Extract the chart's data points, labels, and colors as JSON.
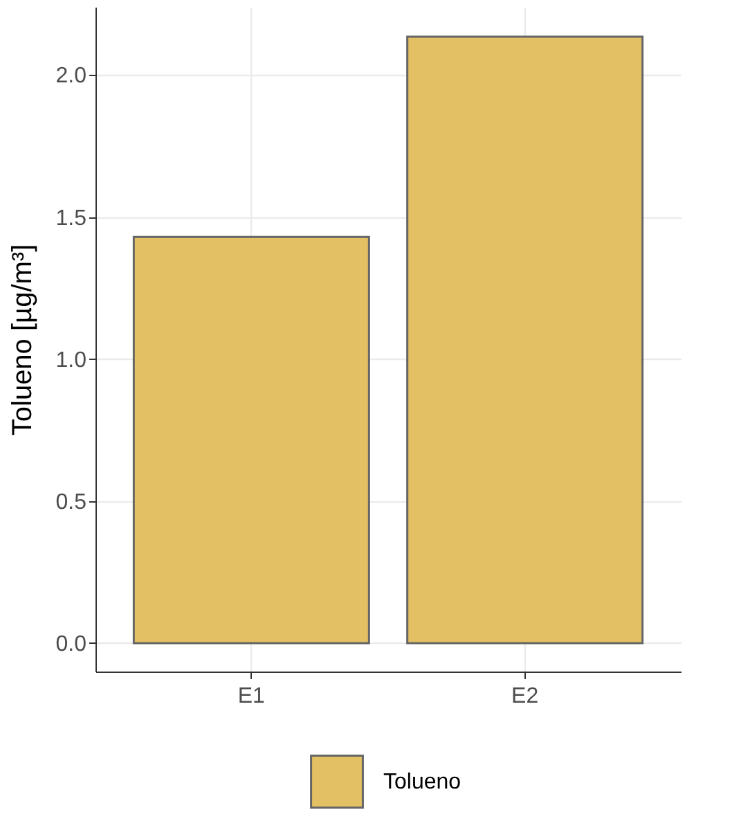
{
  "chart_data": {
    "type": "bar",
    "categories": [
      "E1",
      "E2"
    ],
    "ylabel": "Tolueno [µg/m³]",
    "series": [
      {
        "name": "Tolueno",
        "color": "#e3c063",
        "values": [
          1.43,
          2.135
        ]
      }
    ],
    "ylim": [
      -0.1,
      2.24
    ],
    "yticks": [
      {
        "value": 0,
        "label": "0.0"
      },
      0.5,
      {
        "value": 1,
        "label": "1.0"
      },
      1.5,
      {
        "value": 2,
        "label": "2.0"
      }
    ],
    "grid": true,
    "legend": "bottom"
  }
}
